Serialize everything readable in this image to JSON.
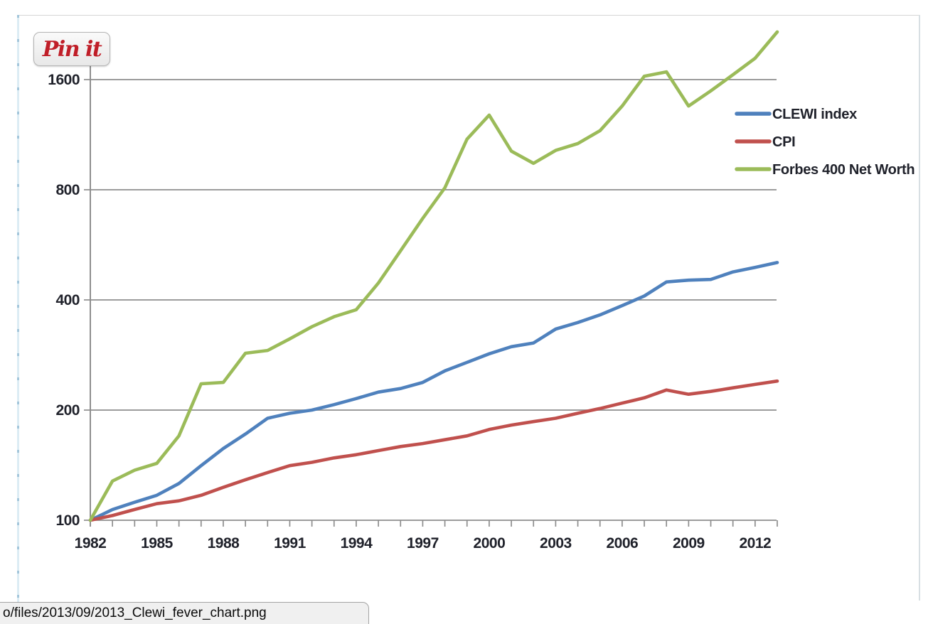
{
  "pin_button": {
    "label": "Pin it"
  },
  "status_bar": {
    "url": "o/files/2013/09/2013_Clewi_fever_chart.png"
  },
  "colors": {
    "clewi": "#4F81BD",
    "cpi": "#C0504D",
    "forbes": "#9BBB59",
    "grid": "#8e8e8e",
    "axis_text": "#20222b",
    "pinterest_red": "#c01e28"
  },
  "chart_data": {
    "type": "line",
    "x_start": 1982,
    "x_end": 2013,
    "x": [
      1982,
      1983,
      1984,
      1985,
      1986,
      1987,
      1988,
      1989,
      1990,
      1991,
      1992,
      1993,
      1994,
      1995,
      1996,
      1997,
      1998,
      1999,
      2000,
      2001,
      2002,
      2003,
      2004,
      2005,
      2006,
      2007,
      2008,
      2009,
      2010,
      2011,
      2012,
      2013
    ],
    "series": [
      {
        "name": "CLEWI index",
        "color": "#4F81BD",
        "values": [
          100,
          107,
          112,
          117,
          126,
          141,
          157,
          172,
          190,
          196,
          200,
          207,
          215,
          224,
          229,
          238,
          256,
          270,
          285,
          298,
          305,
          333,
          347,
          364,
          386,
          410,
          448,
          453,
          455,
          477,
          491,
          506
        ]
      },
      {
        "name": "CPI",
        "color": "#C0504D",
        "values": [
          100,
          103,
          107,
          111,
          113,
          117,
          123,
          129,
          135,
          141,
          144,
          148,
          151,
          155,
          159,
          162,
          166,
          170,
          177,
          182,
          186,
          190,
          196,
          202,
          209,
          216,
          227,
          221,
          225,
          230,
          235,
          240
        ]
      },
      {
        "name": "Forbes 400 Net Worth",
        "color": "#9BBB59",
        "values": [
          100,
          128,
          137,
          143,
          170,
          236,
          238,
          286,
          291,
          313,
          338,
          360,
          376,
          445,
          545,
          668,
          810,
          1100,
          1280,
          1020,
          945,
          1025,
          1070,
          1160,
          1355,
          1635,
          1680,
          1355,
          1490,
          1650,
          1830,
          2160
        ]
      }
    ],
    "y_axis": {
      "scale": "log2",
      "min": 100,
      "ticks": [
        1600,
        800,
        400,
        200,
        100
      ]
    },
    "x_axis": {
      "tick_labels": [
        1982,
        1985,
        1988,
        1991,
        1994,
        1997,
        2000,
        2003,
        2006,
        2009,
        2012
      ],
      "minor_tick_every_year": true
    },
    "legend": [
      "CLEWI index",
      "CPI",
      "Forbes 400 Net Worth"
    ],
    "legend_position": "right",
    "grid": true,
    "title": ""
  }
}
